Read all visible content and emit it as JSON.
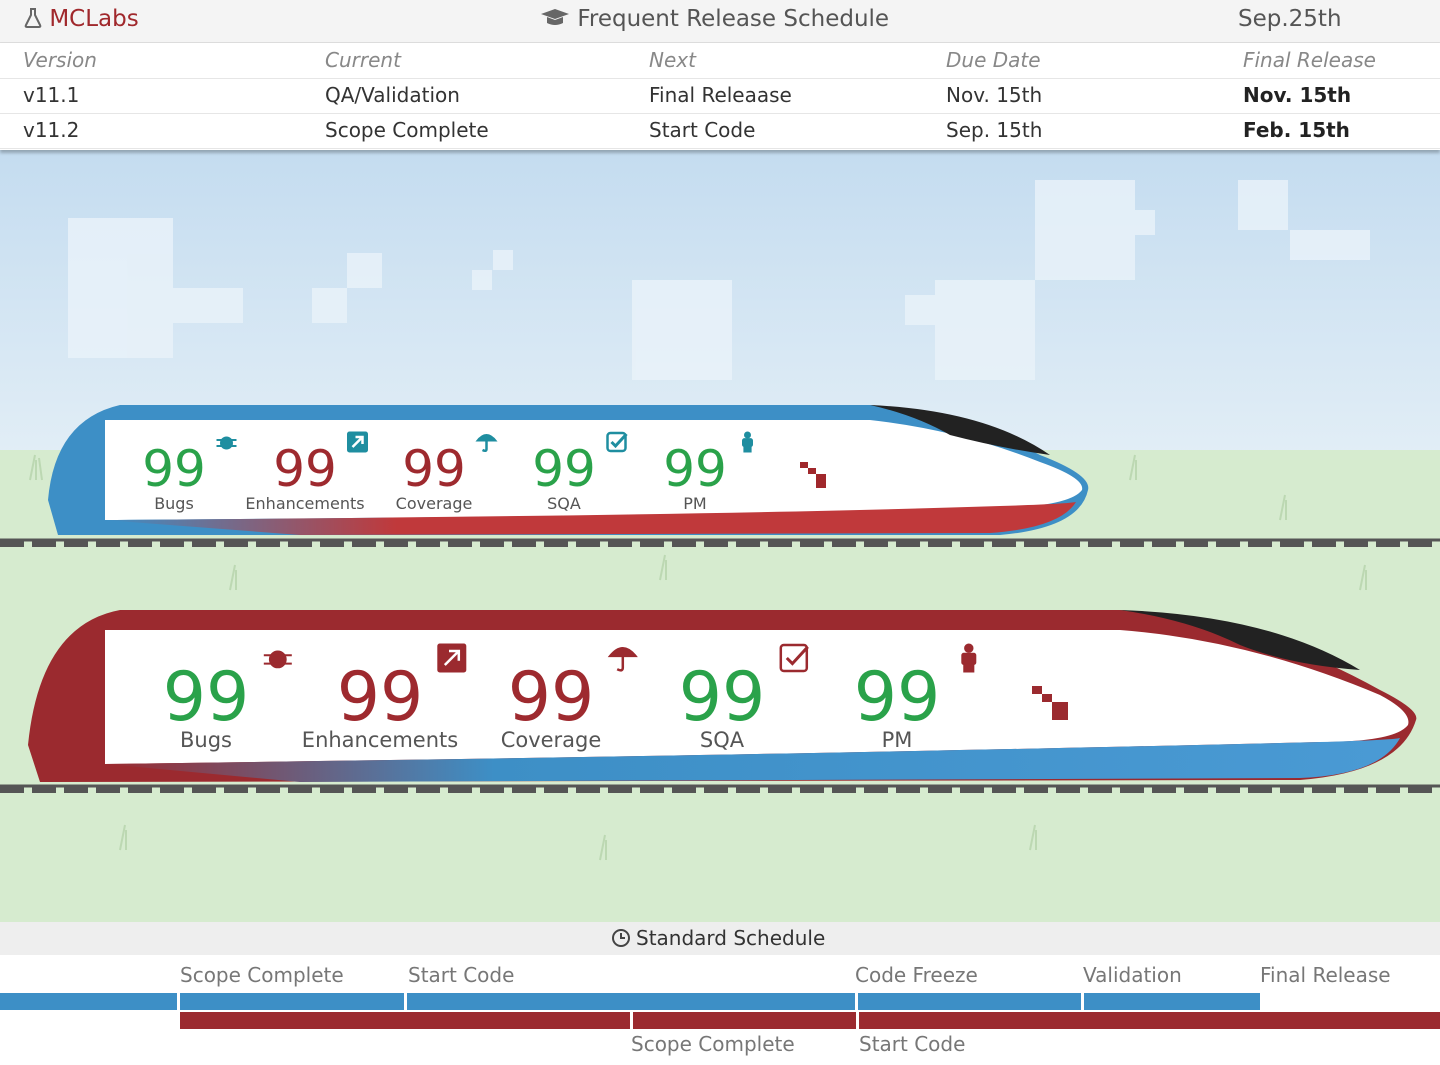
{
  "header": {
    "brand": "MCLabs",
    "title": "Frequent Release Schedule",
    "date": "Sep.25th"
  },
  "table": {
    "columns": [
      "Version",
      "Current",
      "Next",
      "Due Date",
      "Final Release"
    ],
    "rows": [
      [
        "v11.1",
        "QA/Validation",
        "Final Releaase",
        "Nov. 15th",
        "Nov. 15th"
      ],
      [
        "v11.2",
        "Scope Complete",
        "Start Code",
        "Sep. 15th",
        "Feb. 15th"
      ]
    ]
  },
  "trains": [
    {
      "metrics": [
        {
          "value": 99,
          "label": "Bugs",
          "color": "#2aa24a"
        },
        {
          "value": 99,
          "label": "Enhancements",
          "color": "#9e2a2f"
        },
        {
          "value": 99,
          "label": "Coverage",
          "color": "#9e2a2f"
        },
        {
          "value": 99,
          "label": "SQA",
          "color": "#2aa24a"
        },
        {
          "value": 99,
          "label": "PM",
          "color": "#2aa24a"
        }
      ]
    },
    {
      "metrics": [
        {
          "value": 99,
          "label": "Bugs",
          "color": "#2aa24a"
        },
        {
          "value": 99,
          "label": "Enhancements",
          "color": "#9e2a2f"
        },
        {
          "value": 99,
          "label": "Coverage",
          "color": "#9e2a2f"
        },
        {
          "value": 99,
          "label": "SQA",
          "color": "#2aa24a"
        },
        {
          "value": 99,
          "label": "PM",
          "color": "#2aa24a"
        }
      ]
    }
  ],
  "schedule": {
    "title": "Standard Schedule",
    "top_labels": [
      "Scope Complete",
      "Start Code",
      "Code Freeze",
      "Validation",
      "Final Release"
    ],
    "bottom_labels": [
      "Scope Complete",
      "Start Code"
    ]
  }
}
